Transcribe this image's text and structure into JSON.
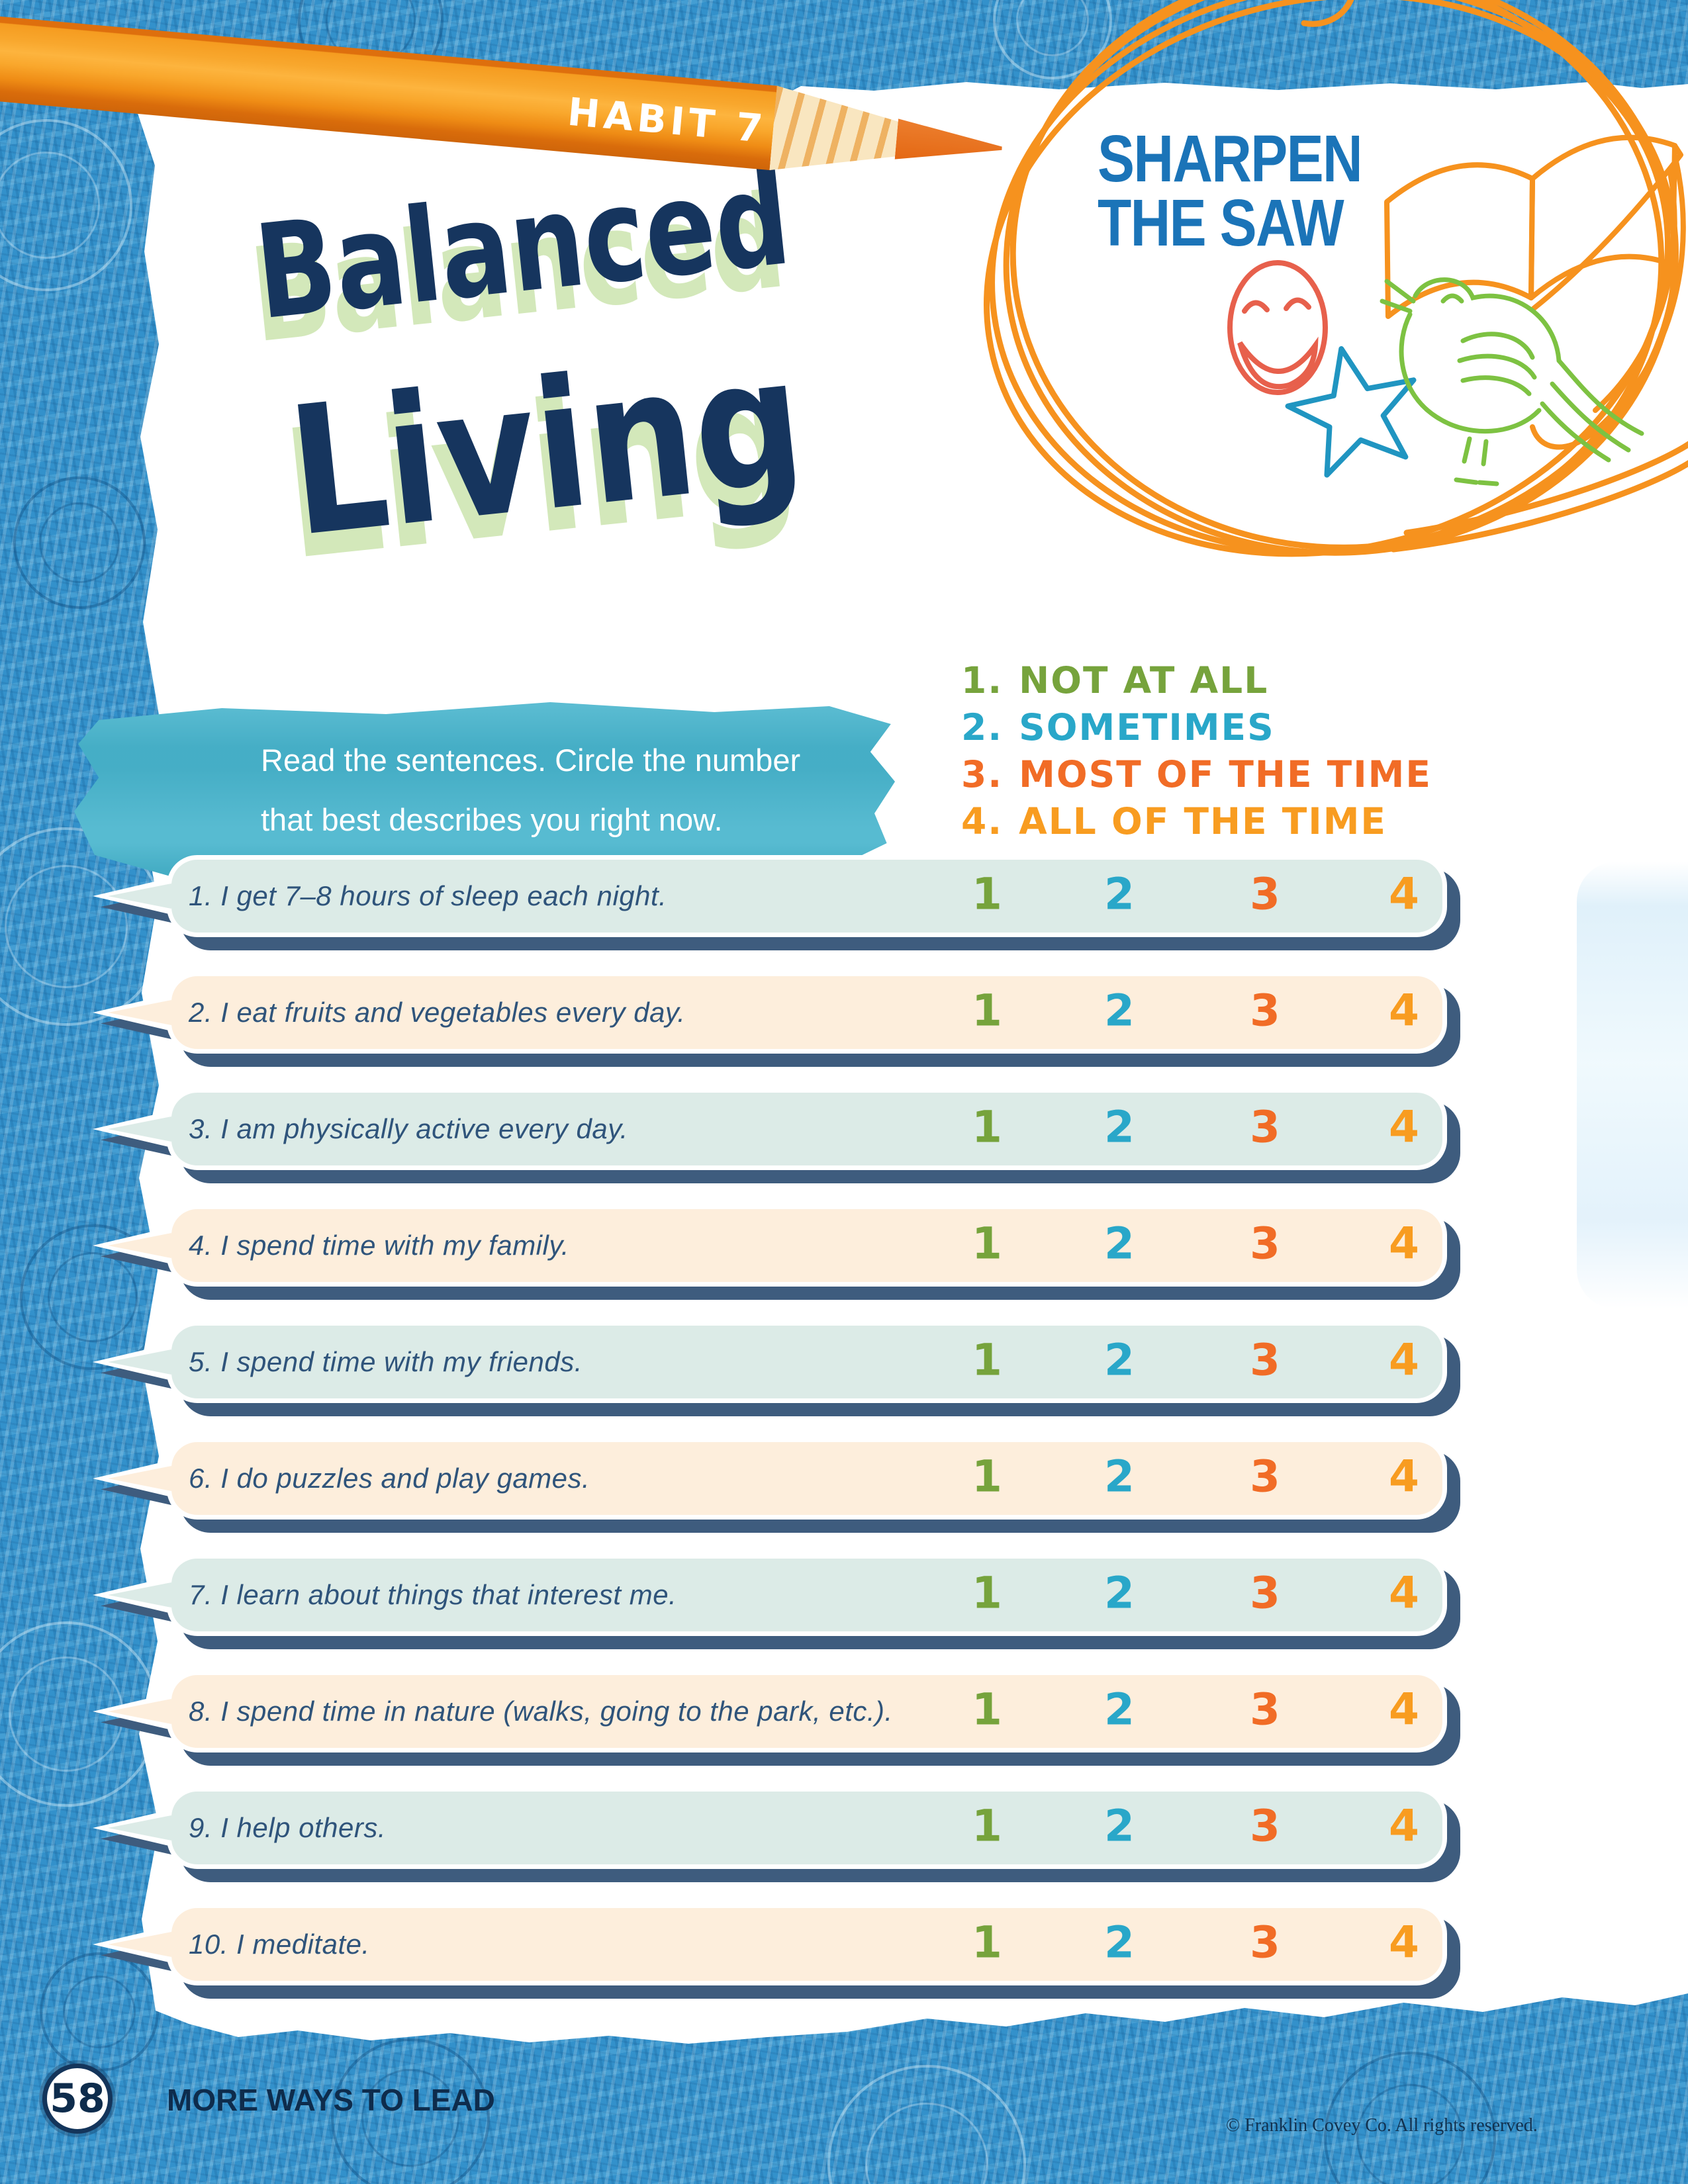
{
  "colors": {
    "background_blue": "#3391cb",
    "paper": "#ffffff",
    "title_navy": "#16355e",
    "title_shadow_green": "#d3e8ba",
    "badge_blue": "#1b74b8",
    "pencil_orange": "#f59c20",
    "brush_teal": "#49b5cd",
    "bubble_teal": "#dcebe7",
    "bubble_peach": "#fdeedc",
    "bubble_shadow_navy": "#3e5c7e",
    "statement_navy": "#2f547b"
  },
  "header": {
    "habit_tag": "HABIT 7",
    "badge_line1": "SHARPEN",
    "badge_line2": "THE SAW"
  },
  "title": {
    "line1": "Balanced",
    "line2": "Living"
  },
  "instructions": {
    "line1": "Read the sentences. Circle the number",
    "line2": "that best describes you right now."
  },
  "legend": [
    {
      "number": "1.",
      "label": "NOT AT ALL",
      "color": "#76a33c"
    },
    {
      "number": "2.",
      "label": "SOMETIMES",
      "color": "#29a7c9"
    },
    {
      "number": "3.",
      "label": "MOST OF THE TIME",
      "color": "#f16c26"
    },
    {
      "number": "4.",
      "label": "ALL OF THE TIME",
      "color": "#f89c20"
    }
  ],
  "scale": [
    {
      "value": "1",
      "color": "#76a33c"
    },
    {
      "value": "2",
      "color": "#29a7c9"
    },
    {
      "value": "3",
      "color": "#f16c26"
    },
    {
      "value": "4",
      "color": "#f89c20"
    }
  ],
  "rows": [
    {
      "label": "1. I get 7–8 hours of sleep each night.",
      "tint": "teal"
    },
    {
      "label": "2. I eat fruits and vegetables every day.",
      "tint": "peach"
    },
    {
      "label": "3. I am physically active every day.",
      "tint": "teal"
    },
    {
      "label": "4. I spend time with my family.",
      "tint": "peach"
    },
    {
      "label": "5. I spend time with my friends.",
      "tint": "teal"
    },
    {
      "label": "6. I do puzzles and play games.",
      "tint": "peach"
    },
    {
      "label": "7. I learn about things that interest me.",
      "tint": "teal"
    },
    {
      "label": "8. I spend time in nature (walks, going to the park, etc.).",
      "tint": "peach"
    },
    {
      "label": "9. I help others.",
      "tint": "teal"
    },
    {
      "label": "10. I meditate.",
      "tint": "peach"
    }
  ],
  "footer": {
    "page_number": "58",
    "tagline": "MORE WAYS TO LEAD",
    "copyright": "© Franklin Covey Co. All rights reserved."
  }
}
